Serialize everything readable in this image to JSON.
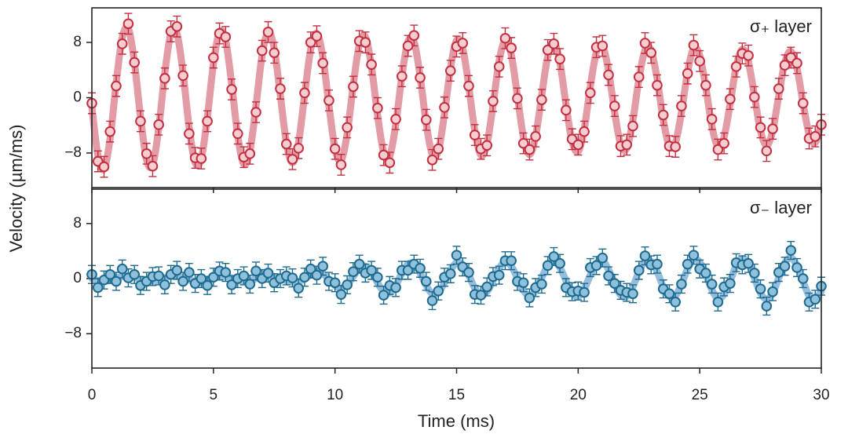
{
  "chart_data": [
    {
      "type": "scatter",
      "ylabel": "Velocity (µm/ms)",
      "annotation": "σ₊ layer",
      "xlim": [
        0,
        30
      ],
      "xticks": [
        0,
        5,
        10,
        15,
        20,
        25,
        30
      ],
      "ylim": [
        -13,
        13
      ],
      "yticks": [
        {
          "value": -8,
          "label": "−8"
        },
        0,
        8
      ],
      "x": [
        0,
        0.25,
        0.5,
        0.75,
        1,
        1.25,
        1.5,
        1.75,
        2,
        2.25,
        2.5,
        2.75,
        3,
        3.25,
        3.5,
        3.75,
        4,
        4.25,
        4.5,
        4.75,
        5,
        5.25,
        5.5,
        5.75,
        6,
        6.25,
        6.5,
        6.75,
        7,
        7.25,
        7.5,
        7.75,
        8,
        8.25,
        8.5,
        8.75,
        9,
        9.25,
        9.5,
        9.75,
        10,
        10.25,
        10.5,
        10.75,
        11,
        11.25,
        11.5,
        11.75,
        12,
        12.25,
        12.5,
        12.75,
        13,
        13.25,
        13.5,
        13.75,
        14,
        14.25,
        14.5,
        14.75,
        15,
        15.25,
        15.5,
        15.75,
        16,
        16.25,
        16.5,
        16.75,
        17,
        17.25,
        17.5,
        17.75,
        18,
        18.25,
        18.5,
        18.75,
        19,
        19.25,
        19.5,
        19.75,
        20,
        20.25,
        20.5,
        20.75,
        21,
        21.25,
        21.5,
        21.75,
        22,
        22.25,
        22.5,
        22.75,
        23,
        23.25,
        23.5,
        23.75,
        24,
        24.25,
        24.5,
        24.75,
        25,
        25.25,
        25.5,
        25.75,
        26,
        26.25,
        26.5,
        26.75,
        27,
        27.25,
        27.5,
        27.75,
        28,
        28.25,
        28.5,
        28.75,
        29,
        29.25,
        29.5,
        29.75,
        30
      ],
      "fit": {
        "color": "#e0909c",
        "values": [
          -1.3,
          -8.4,
          -10.3,
          -5.9,
          2.1,
          8.7,
          10.0,
          5.1,
          -2.8,
          -9.0,
          -9.7,
          -4.4,
          3.6,
          9.3,
          9.3,
          3.6,
          -4.3,
          -9.4,
          -8.8,
          -2.8,
          4.9,
          9.5,
          8.3,
          2.0,
          -5.5,
          -9.6,
          -7.7,
          -1.2,
          6.1,
          9.5,
          7.1,
          0.4,
          -6.5,
          -9.4,
          -6.5,
          0.4,
          7.0,
          9.3,
          5.9,
          -1.1,
          -7.4,
          -9.1,
          -5.2,
          1.8,
          7.7,
          8.8,
          4.5,
          -2.5,
          -7.9,
          -8.5,
          -3.8,
          3.1,
          8.1,
          8.1,
          3.1,
          -3.7,
          -8.2,
          -7.7,
          -2.4,
          4.3,
          8.3,
          7.2,
          1.7,
          -4.8,
          -8.3,
          -6.7,
          -1.0,
          5.3,
          8.3,
          6.2,
          0.3,
          -5.7,
          -8.2,
          -5.6,
          0.3,
          6.0,
          8.0,
          5.1,
          -1.0,
          -6.3,
          -7.8,
          -4.5,
          1.6,
          6.6,
          7.5,
          3.9,
          -2.1,
          -6.8,
          -7.3,
          -3.3,
          2.7,
          6.9,
          6.9,
          2.7,
          -3.2,
          -7.0,
          -6.5,
          -2.1,
          3.7,
          7.1,
          6.1,
          1.5,
          -4.1,
          -7.1,
          -5.7,
          -0.9,
          4.5,
          7.0,
          5.2,
          0.3,
          -4.8,
          -6.9,
          -4.8,
          0.3,
          5.1,
          6.7,
          4.3,
          -0.8,
          -5.3,
          -6.5,
          -3.7
        ]
      },
      "points": {
        "color": "#c22f3f",
        "fill": "#f6cdd1",
        "error": 1.5,
        "values": [
          -0.8,
          -9.2,
          -10.0,
          -4.9,
          1.7,
          7.8,
          10.7,
          5.1,
          -3.4,
          -8.1,
          -9.9,
          -3.9,
          2.8,
          9.6,
          10.3,
          3.2,
          -5.2,
          -8.7,
          -8.8,
          -3.4,
          5.8,
          9.3,
          8.8,
          1.2,
          -5.2,
          -8.6,
          -8.1,
          -2.1,
          6.8,
          9.5,
          6.5,
          1.3,
          -6.7,
          -8.9,
          -7.3,
          0.7,
          8.0,
          8.9,
          5.0,
          -0.4,
          -7.4,
          -9.7,
          -4.3,
          1.6,
          8.2,
          8.0,
          4.8,
          -1.5,
          -8.3,
          -9.4,
          -3.1,
          3.1,
          7.5,
          9.0,
          2.9,
          -3.2,
          -9.0,
          -7.4,
          -1.4,
          3.9,
          7.4,
          7.9,
          1.7,
          -5.4,
          -7.4,
          -6.9,
          -0.5,
          4.5,
          8.6,
          7.2,
          -0.1,
          -6.6,
          -7.5,
          -5.6,
          -0.3,
          6.9,
          7.8,
          5.6,
          -1.8,
          -6.0,
          -6.8,
          -4.9,
          0.7,
          7.3,
          7.5,
          3.3,
          -1.2,
          -7.0,
          -6.8,
          -4.1,
          3.0,
          7.9,
          6.5,
          1.8,
          -2.5,
          -7.0,
          -7.1,
          -1.2,
          3.5,
          7.6,
          5.3,
          1.8,
          -3.1,
          -7.5,
          -6.6,
          -0.2,
          4.5,
          6.4,
          6.1,
          0.1,
          -4.3,
          -7.7,
          -4.5,
          1.3,
          4.7,
          5.8,
          5.0,
          -0.8,
          -5.9,
          -5.6,
          -3.9
        ]
      }
    },
    {
      "type": "scatter",
      "xlabel": "Time (ms)",
      "annotation": "σ₋ layer",
      "xlim": [
        0,
        30
      ],
      "xticks": [
        0,
        5,
        10,
        15,
        20,
        25,
        30
      ],
      "ylim": [
        -13,
        13
      ],
      "yticks": [
        {
          "value": -8,
          "label": "−8"
        },
        0,
        8
      ],
      "x": [
        0,
        0.25,
        0.5,
        0.75,
        1,
        1.25,
        1.5,
        1.75,
        2,
        2.25,
        2.5,
        2.75,
        3,
        3.25,
        3.5,
        3.75,
        4,
        4.25,
        4.5,
        4.75,
        5,
        5.25,
        5.5,
        5.75,
        6,
        6.25,
        6.5,
        6.75,
        7,
        7.25,
        7.5,
        7.75,
        8,
        8.25,
        8.5,
        8.75,
        9,
        9.25,
        9.5,
        9.75,
        10,
        10.25,
        10.5,
        10.75,
        11,
        11.25,
        11.5,
        11.75,
        12,
        12.25,
        12.5,
        12.75,
        13,
        13.25,
        13.5,
        13.75,
        14,
        14.25,
        14.5,
        14.75,
        15,
        15.25,
        15.5,
        15.75,
        16,
        16.25,
        16.5,
        16.75,
        17,
        17.25,
        17.5,
        17.75,
        18,
        18.25,
        18.5,
        18.75,
        19,
        19.25,
        19.5,
        19.75,
        20,
        20.25,
        20.5,
        20.75,
        21,
        21.25,
        21.5,
        21.75,
        22,
        22.25,
        22.5,
        22.75,
        23,
        23.25,
        23.5,
        23.75,
        24,
        24.25,
        24.5,
        24.75,
        25,
        25.25,
        25.5,
        25.75,
        26,
        26.25,
        26.5,
        26.75,
        27,
        27.25,
        27.5,
        27.75,
        28,
        28.25,
        28.5,
        28.75,
        29,
        29.25,
        29.5,
        29.75,
        30
      ],
      "fit": {
        "color": "#8ab6d8",
        "values": [
          0,
          -0.3,
          -0.4,
          -0.2,
          0.1,
          0.3,
          0.4,
          0.2,
          -0.1,
          -0.4,
          -0.4,
          -0.2,
          0.1,
          0.4,
          0.4,
          0.1,
          -0.2,
          -0.4,
          -0.4,
          -0.1,
          0.2,
          0.4,
          0.3,
          0.1,
          -0.2,
          -0.4,
          -0.3,
          0,
          0.3,
          0.4,
          0.3,
          0,
          -0.3,
          -0.5,
          -0.4,
          0,
          0.6,
          1.0,
          0.7,
          -0.1,
          -1.0,
          -1.4,
          -0.9,
          0.3,
          1.5,
          1.8,
          1.0,
          -0.6,
          -1.9,
          -2.1,
          -1.0,
          0.8,
          2.1,
          2.1,
          0.8,
          -1.0,
          -2.2,
          -2.0,
          -0.6,
          1.2,
          2.3,
          2.0,
          0.5,
          -1.4,
          -2.4,
          -1.9,
          -0.3,
          1.5,
          2.4,
          1.8,
          0.1,
          -1.7,
          -2.5,
          -1.7,
          0.1,
          1.9,
          2.5,
          1.6,
          -0.3,
          -2.1,
          -2.6,
          -1.5,
          0.5,
          2.2,
          2.6,
          1.3,
          -0.7,
          -2.4,
          -2.6,
          -1.2,
          1.0,
          2.5,
          2.5,
          1.0,
          -1.2,
          -2.6,
          -2.5,
          -0.8,
          1.4,
          2.8,
          2.4,
          0.6,
          -1.6,
          -2.9,
          -2.3,
          -0.4,
          1.9,
          2.9,
          2.2,
          0.1,
          -2.1,
          -3.0,
          -2.1,
          0.1,
          2.3,
          3.0,
          1.9,
          -0.4,
          -2.5,
          -3.0,
          -1.8
        ]
      },
      "points": {
        "color": "#1d6a8f",
        "fill": "#8fc1dd",
        "error": 1.3,
        "values": [
          0.6,
          -1.3,
          -0.2,
          0.6,
          -0.4,
          1.4,
          0.1,
          0.6,
          -1.0,
          -0.4,
          0.3,
          0.4,
          -0.9,
          0.6,
          1.2,
          -0.4,
          0.9,
          -0.7,
          0,
          -1.0,
          0.2,
          1.1,
          0.9,
          -0.9,
          0,
          0.4,
          -0.8,
          1.1,
          0,
          0.8,
          -0.6,
          0,
          0.4,
          0.1,
          -1.4,
          0.2,
          1.4,
          0.5,
          1.8,
          -0.4,
          -0.6,
          -2.3,
          -0.9,
          1.0,
          2.1,
          0.8,
          1.2,
          0.2,
          -2.4,
          -1.0,
          -1.3,
          1.2,
          1.2,
          2.1,
          1.5,
          -0.4,
          -3.2,
          -1.8,
          0.2,
          0.7,
          3.4,
          1.7,
          0.9,
          -2.3,
          -2.4,
          -1.2,
          0.3,
          0.5,
          2.6,
          2.6,
          -0.4,
          -0.6,
          -2.8,
          -1.3,
          -0.8,
          1.9,
          3.2,
          2.2,
          -1.3,
          -1.9,
          -1.8,
          -2.0,
          1.6,
          1.9,
          3.0,
          0.4,
          -0.7,
          -1.7,
          -2.0,
          -2.2,
          1.2,
          3.3,
          2.0,
          2.1,
          -1.5,
          -2.2,
          -3.4,
          -0.8,
          2.1,
          3.4,
          1.4,
          0.8,
          -0.8,
          -3.4,
          -1.2,
          -0.7,
          2.3,
          2.0,
          2.2,
          0.8,
          -1.5,
          -4.0,
          -1.9,
          0.9,
          1.8,
          4.1,
          1.6,
          0,
          -3.4,
          -3.0,
          -1.1
        ]
      }
    }
  ]
}
